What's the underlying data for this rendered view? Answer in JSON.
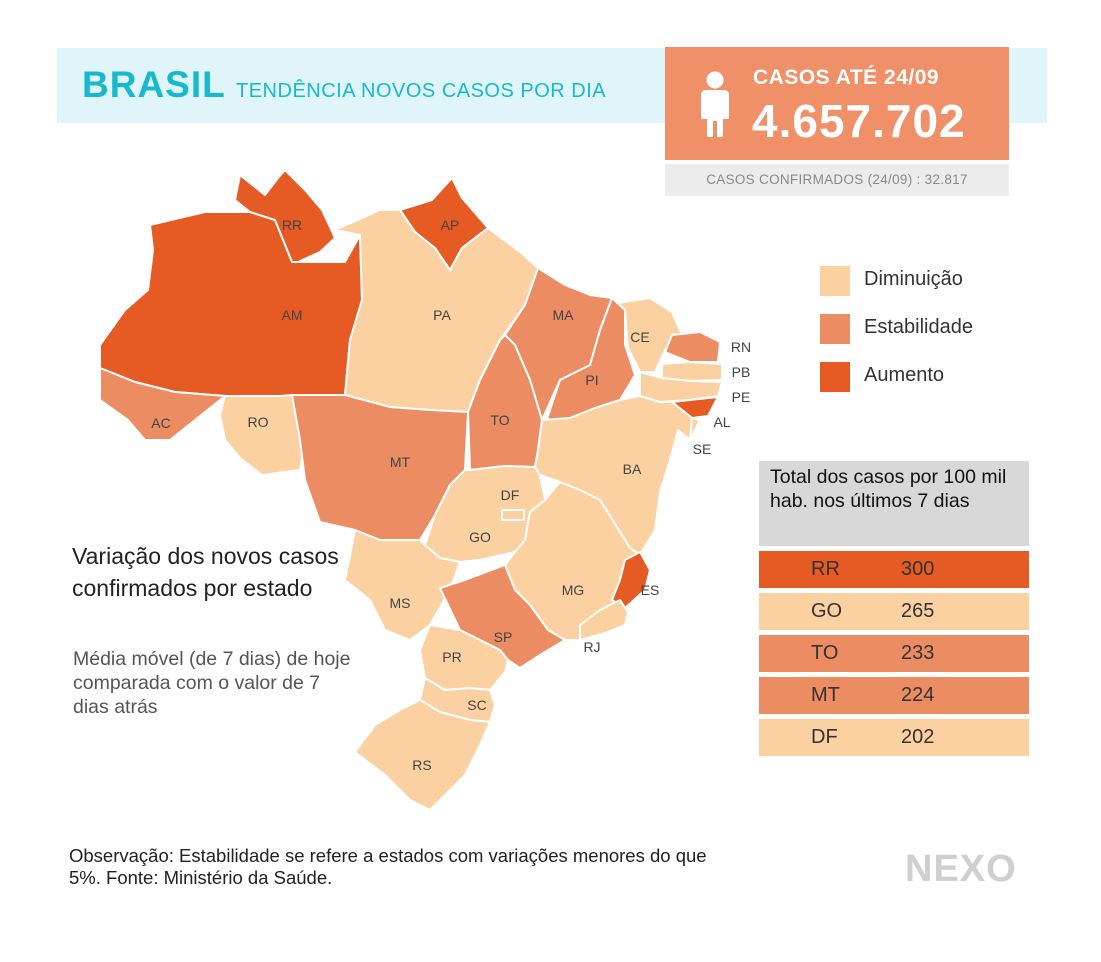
{
  "header": {
    "title": "BRASIL",
    "subtitle": "TENDÊNCIA NOVOS CASOS POR DIA"
  },
  "cases": {
    "label": "CASOS ATÉ 24/09",
    "value": "4.657.702",
    "confirmed": "CASOS CONFIRMADOS (24/09) : 32.817",
    "icon": "person-icon"
  },
  "colors": {
    "diminuicao": "#fbd1a2",
    "estabilidade": "#ec8c62",
    "aumento": "#e65a24",
    "title_accent": "#18b8cf"
  },
  "legend": [
    {
      "key": "diminuicao",
      "label": "Diminuição"
    },
    {
      "key": "estabilidade",
      "label": "Estabilidade"
    },
    {
      "key": "aumento",
      "label": "Aumento"
    }
  ],
  "states": [
    {
      "uf": "RR",
      "status": "aumento"
    },
    {
      "uf": "AP",
      "status": "aumento"
    },
    {
      "uf": "AM",
      "status": "aumento"
    },
    {
      "uf": "PA",
      "status": "diminuicao"
    },
    {
      "uf": "MA",
      "status": "estabilidade"
    },
    {
      "uf": "CE",
      "status": "diminuicao"
    },
    {
      "uf": "RN",
      "status": "estabilidade"
    },
    {
      "uf": "PB",
      "status": "diminuicao"
    },
    {
      "uf": "PE",
      "status": "diminuicao"
    },
    {
      "uf": "AL",
      "status": "aumento"
    },
    {
      "uf": "SE",
      "status": "diminuicao"
    },
    {
      "uf": "PI",
      "status": "estabilidade"
    },
    {
      "uf": "TO",
      "status": "estabilidade"
    },
    {
      "uf": "BA",
      "status": "diminuicao"
    },
    {
      "uf": "AC",
      "status": "estabilidade"
    },
    {
      "uf": "RO",
      "status": "diminuicao"
    },
    {
      "uf": "MT",
      "status": "estabilidade"
    },
    {
      "uf": "DF",
      "status": "diminuicao"
    },
    {
      "uf": "GO",
      "status": "diminuicao"
    },
    {
      "uf": "MG",
      "status": "diminuicao"
    },
    {
      "uf": "ES",
      "status": "aumento"
    },
    {
      "uf": "MS",
      "status": "diminuicao"
    },
    {
      "uf": "SP",
      "status": "estabilidade"
    },
    {
      "uf": "RJ",
      "status": "diminuicao"
    },
    {
      "uf": "PR",
      "status": "diminuicao"
    },
    {
      "uf": "SC",
      "status": "diminuicao"
    },
    {
      "uf": "RS",
      "status": "diminuicao"
    }
  ],
  "variation": {
    "title": "Variação dos novos casos confirmados por estado",
    "text": "Média móvel (de 7 dias) de hoje comparada com o valor de 7 dias atrás"
  },
  "table": {
    "header": "Total dos casos por 100 mil hab. nos últimos 7 dias",
    "rows": [
      {
        "uf": "RR",
        "value": "300",
        "status": "aumento"
      },
      {
        "uf": "GO",
        "value": "265",
        "status": "diminuicao"
      },
      {
        "uf": "TO",
        "value": "233",
        "status": "estabilidade"
      },
      {
        "uf": "MT",
        "value": "224",
        "status": "estabilidade"
      },
      {
        "uf": "DF",
        "value": "202",
        "status": "diminuicao"
      }
    ]
  },
  "note": "Observação: Estabilidade se refere a estados com variações menores do que 5%. Fonte: Ministério da Saúde.",
  "logo": "NEXO"
}
